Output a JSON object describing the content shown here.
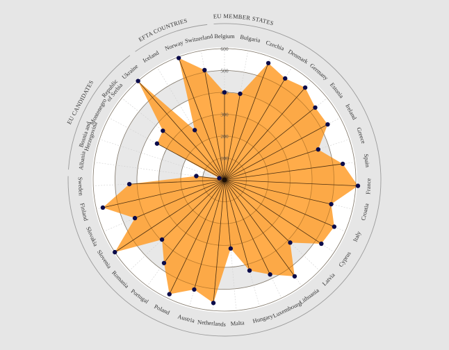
{
  "chart_data": {
    "type": "radar",
    "title": "",
    "rmax": 600,
    "ticks": [
      100,
      200,
      300,
      400,
      500,
      600
    ],
    "categories": [
      "Belgium",
      "Bulgaria",
      "Czechia",
      "Denmark",
      "Germany",
      "Estonia",
      "Ireland",
      "Greece",
      "Spain",
      "France",
      "Croatia",
      "Italy",
      "Cyprus",
      "Latvia",
      "Lithuania",
      "Luxembourg",
      "Hungary",
      "Malta",
      "Netherlands",
      "Austria",
      "Poland",
      "Portugal",
      "Romania",
      "Slovenia",
      "Slovakia",
      "Finland",
      "Sweden",
      "Albania",
      "Bosnia and Herzegovina",
      "Montenegro",
      "Republic of Serbia",
      "Ukraine",
      "Iceland",
      "Norway",
      "Switzerland"
    ],
    "label_lines": {
      "Bosnia and Herzegovina": [
        "Bosnia and",
        "Herzegovina"
      ],
      "Republic of Serbia": [
        "Republic",
        "of Serbia"
      ]
    },
    "values": [
      400,
      400,
      570,
      540,
      560,
      530,
      535,
      450,
      545,
      610,
      500,
      545,
      530,
      415,
      545,
      480,
      430,
      315,
      565,
      520,
      580,
      470,
      395,
      600,
      445,
      570,
      435,
      130,
      25,
      350,
      360,
      600,
      265,
      595,
      510
    ],
    "groups": [
      {
        "name": "EU MEMBER STATES",
        "start": 0,
        "end": 26
      },
      {
        "name": "EU CANDIDATES",
        "start": 27,
        "end": 31
      },
      {
        "name": "EFTA COUNTRIES",
        "start": 32,
        "end": 34
      }
    ],
    "colors": {
      "fill": "#ff9d2a",
      "fill_opacity": 0.85,
      "spoke": "#4a2e10",
      "point": "#0b0b4a",
      "band_a": "#ffffff",
      "band_b": "#e8e8e8",
      "ring": "#9a9a9a",
      "background": "#e6e6e6"
    }
  }
}
